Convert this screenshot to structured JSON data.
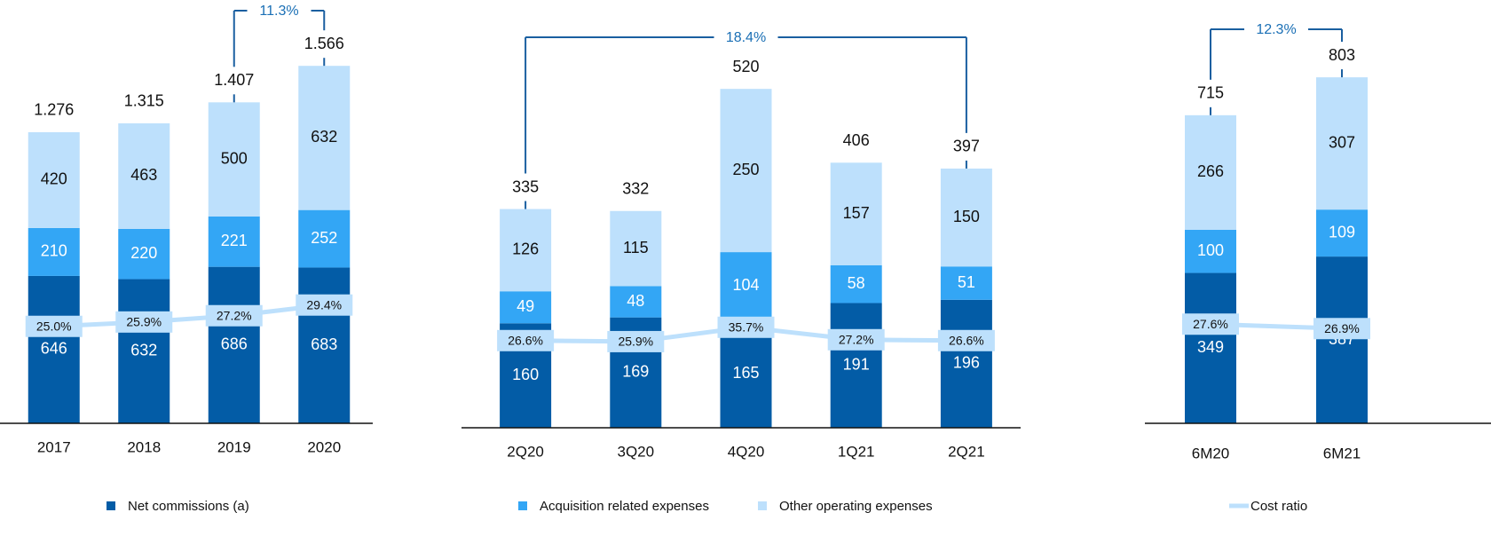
{
  "legend": [
    {
      "name": "Net commissions (a)",
      "color": "#035ca6",
      "type": "bar"
    },
    {
      "name": "Acquisition related expenses",
      "color": "#33a6f5",
      "type": "bar"
    },
    {
      "name": "Other operating expenses",
      "color": "#bde0fc",
      "type": "bar"
    },
    {
      "name": "Cost ratio",
      "color": "#bde0fc",
      "type": "line"
    }
  ],
  "chart_data": [
    {
      "type": "bar",
      "categories": [
        "2017",
        "2018",
        "2019",
        "2020"
      ],
      "series": [
        {
          "values": [
            646,
            632,
            686,
            683
          ]
        },
        {
          "values": [
            210,
            220,
            221,
            252
          ]
        },
        {
          "values": [
            420,
            463,
            500,
            632
          ]
        },
        {
          "type": "line",
          "axis": "y2",
          "values": [
            25.0,
            25.9,
            27.2,
            29.4
          ],
          "value_labels": [
            "25.0%",
            "25.9%",
            "27.2%",
            "29.4%"
          ]
        }
      ],
      "totals": {
        "values": [
          1276,
          1315,
          1407,
          1566
        ],
        "value_labels": [
          "1.276",
          "1.315",
          "1.407",
          "1.566"
        ]
      },
      "ylim": [
        0,
        1700
      ],
      "y2lim": [
        5,
        85
      ],
      "annotation": {
        "text": "11.3%",
        "categories": [
          "2019",
          "2020"
        ]
      }
    },
    {
      "type": "bar",
      "categories": [
        "2Q20",
        "3Q20",
        "4Q20",
        "1Q21",
        "2Q21"
      ],
      "series": [
        {
          "values": [
            160,
            169,
            165,
            191,
            196
          ]
        },
        {
          "values": [
            49,
            48,
            104,
            58,
            51
          ]
        },
        {
          "values": [
            126,
            115,
            250,
            157,
            150
          ]
        },
        {
          "type": "line",
          "axis": "y2",
          "values": [
            26.6,
            25.9,
            35.7,
            27.2,
            26.6
          ],
          "value_labels": [
            "26.6%",
            "25.9%",
            "35.7%",
            "27.2%",
            "26.6%"
          ]
        }
      ],
      "totals": {
        "values": [
          335,
          332,
          520,
          406,
          397
        ]
      },
      "ylim": [
        0,
        560
      ],
      "y2lim": [
        -33,
        217
      ],
      "annotation": {
        "text": "18.4%",
        "categories": [
          "2Q20",
          "2Q21"
        ]
      }
    },
    {
      "type": "bar",
      "categories": [
        "6M20",
        "6M21"
      ],
      "series": [
        {
          "values": [
            349,
            387
          ]
        },
        {
          "values": [
            100,
            109
          ]
        },
        {
          "values": [
            266,
            307
          ]
        },
        {
          "type": "line",
          "axis": "y2",
          "values": [
            27.6,
            26.9
          ],
          "value_labels": [
            "27.6%",
            "26.9%"
          ]
        }
      ],
      "totals": {
        "values": [
          715,
          803
        ]
      },
      "ylim": [
        0,
        900
      ],
      "y2lim": [
        12,
        73
      ],
      "annotation": {
        "text": "12.3%",
        "categories": [
          "6M20",
          "6M21"
        ]
      }
    }
  ]
}
